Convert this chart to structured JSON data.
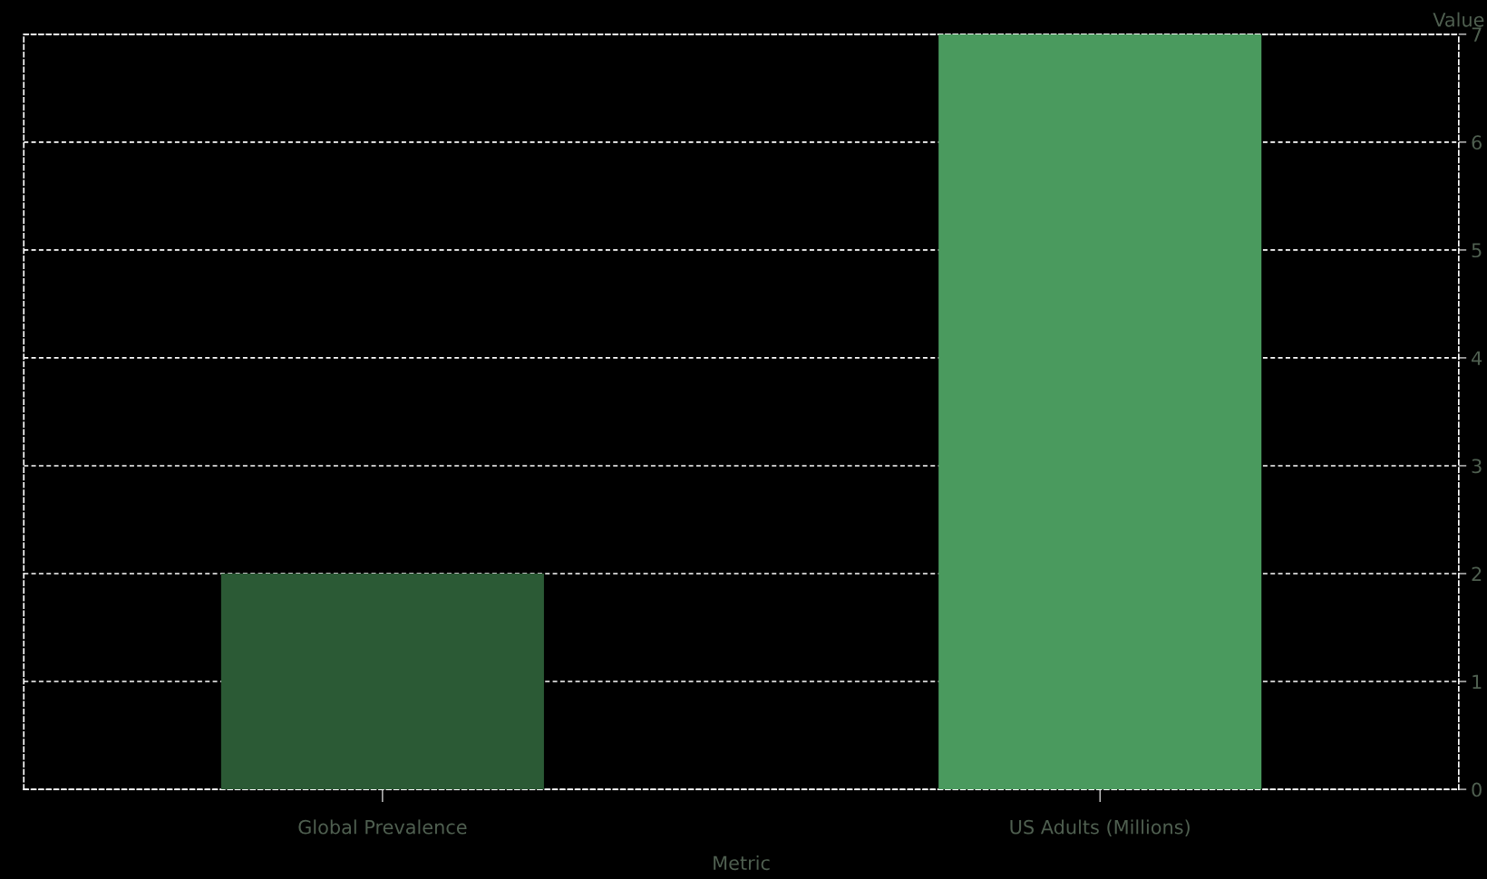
{
  "chart_data": {
    "type": "bar",
    "xlabel": "Metric",
    "ylabel": "Value",
    "categories": [
      "Global Prevalence",
      "US Adults (Millions)"
    ],
    "values": [
      2,
      7
    ],
    "colors": [
      "#2b5a35",
      "#4a9a5e"
    ],
    "ylim": [
      0,
      7
    ],
    "yticks": [
      0,
      1,
      2,
      3,
      4,
      5,
      6,
      7
    ],
    "grid": "y"
  }
}
